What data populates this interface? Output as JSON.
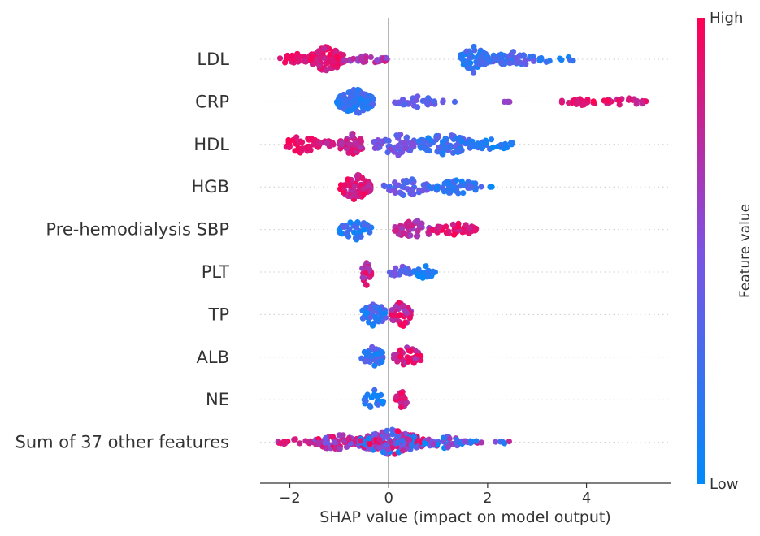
{
  "chart_data": {
    "type": "scatter",
    "subtype": "shap-beeswarm",
    "xlabel": "SHAP value (impact on model output)",
    "xlim": [
      -2.6,
      5.7
    ],
    "xticks": [
      -2,
      0,
      2,
      4
    ],
    "xtick_labels": [
      "−2",
      "0",
      "2",
      "4"
    ],
    "features": [
      {
        "name": "LDL",
        "clusters": [
          {
            "x0": -2.2,
            "x1": -1.6,
            "n": 30,
            "spread": 0.55,
            "c0": 0.8,
            "c1": 1.0
          },
          {
            "x0": -1.6,
            "x1": -0.9,
            "n": 110,
            "spread": 1.0,
            "c0": 0.75,
            "c1": 1.0
          },
          {
            "x0": -0.9,
            "x1": 0.0,
            "n": 25,
            "spread": 0.35,
            "c0": 0.55,
            "c1": 0.85
          },
          {
            "x0": 1.45,
            "x1": 2.0,
            "n": 70,
            "spread": 1.0,
            "c0": 0.0,
            "c1": 0.35
          },
          {
            "x0": 2.0,
            "x1": 3.0,
            "n": 55,
            "spread": 0.6,
            "c0": 0.15,
            "c1": 0.45
          },
          {
            "x0": 3.0,
            "x1": 3.75,
            "n": 12,
            "spread": 0.3,
            "c0": 0.05,
            "c1": 0.3
          }
        ]
      },
      {
        "name": "CRP",
        "clusters": [
          {
            "x0": -1.05,
            "x1": -0.3,
            "n": 140,
            "spread": 1.0,
            "c0": 0.05,
            "c1": 0.35
          },
          {
            "x0": 0.1,
            "x1": 1.1,
            "n": 30,
            "spread": 0.4,
            "c0": 0.25,
            "c1": 0.5
          },
          {
            "x0": 1.3,
            "x1": 1.4,
            "n": 1,
            "spread": 0.0,
            "c0": 0.3,
            "c1": 0.35
          },
          {
            "x0": 2.3,
            "x1": 2.7,
            "n": 4,
            "spread": 0.0,
            "c0": 0.55,
            "c1": 0.7
          },
          {
            "x0": 3.5,
            "x1": 4.3,
            "n": 25,
            "spread": 0.25,
            "c0": 0.8,
            "c1": 1.0
          },
          {
            "x0": 4.3,
            "x1": 5.25,
            "n": 25,
            "spread": 0.3,
            "c0": 0.75,
            "c1": 1.0
          }
        ]
      },
      {
        "name": "HDL",
        "clusters": [
          {
            "x0": -2.1,
            "x1": -1.4,
            "n": 45,
            "spread": 0.7,
            "c0": 0.85,
            "c1": 1.0
          },
          {
            "x0": -1.4,
            "x1": -1.1,
            "n": 8,
            "spread": 0.3,
            "c0": 0.7,
            "c1": 0.9
          },
          {
            "x0": -1.0,
            "x1": -0.5,
            "n": 55,
            "spread": 0.85,
            "c0": 0.65,
            "c1": 0.95
          },
          {
            "x0": -0.3,
            "x1": 0.6,
            "n": 55,
            "spread": 0.85,
            "c0": 0.3,
            "c1": 0.6
          },
          {
            "x0": 0.6,
            "x1": 1.7,
            "n": 85,
            "spread": 0.85,
            "c0": 0.05,
            "c1": 0.4
          },
          {
            "x0": 1.7,
            "x1": 2.5,
            "n": 30,
            "spread": 0.5,
            "c0": 0.0,
            "c1": 0.25
          }
        ]
      },
      {
        "name": "HGB",
        "clusters": [
          {
            "x0": -1.0,
            "x1": -0.35,
            "n": 95,
            "spread": 1.0,
            "c0": 0.7,
            "c1": 1.0
          },
          {
            "x0": -0.1,
            "x1": 0.8,
            "n": 45,
            "spread": 0.7,
            "c0": 0.25,
            "c1": 0.55
          },
          {
            "x0": 0.8,
            "x1": 1.9,
            "n": 50,
            "spread": 0.55,
            "c0": 0.05,
            "c1": 0.35
          },
          {
            "x0": 1.9,
            "x1": 2.1,
            "n": 3,
            "spread": 0.0,
            "c0": 0.0,
            "c1": 0.15
          }
        ]
      },
      {
        "name": "Pre-hemodialysis SBP",
        "clusters": [
          {
            "x0": -1.0,
            "x1": -0.35,
            "n": 45,
            "spread": 0.8,
            "c0": 0.0,
            "c1": 0.35
          },
          {
            "x0": 0.1,
            "x1": 0.9,
            "n": 55,
            "spread": 0.75,
            "c0": 0.55,
            "c1": 0.85
          },
          {
            "x0": 0.9,
            "x1": 1.8,
            "n": 50,
            "spread": 0.5,
            "c0": 0.75,
            "c1": 1.0
          }
        ]
      },
      {
        "name": "PLT",
        "clusters": [
          {
            "x0": -0.55,
            "x1": -0.35,
            "n": 30,
            "spread": 1.0,
            "c0": 0.6,
            "c1": 0.95
          },
          {
            "x0": 0.0,
            "x1": 0.45,
            "n": 18,
            "spread": 0.5,
            "c0": 0.25,
            "c1": 0.55
          },
          {
            "x0": 0.5,
            "x1": 0.95,
            "n": 22,
            "spread": 0.5,
            "c0": 0.0,
            "c1": 0.25
          }
        ]
      },
      {
        "name": "TP",
        "clusters": [
          {
            "x0": -0.55,
            "x1": -0.05,
            "n": 55,
            "spread": 1.0,
            "c0": 0.05,
            "c1": 0.45
          },
          {
            "x0": 0.05,
            "x1": 0.45,
            "n": 45,
            "spread": 1.0,
            "c0": 0.6,
            "c1": 1.0
          }
        ]
      },
      {
        "name": "ALB",
        "clusters": [
          {
            "x0": -0.55,
            "x1": -0.1,
            "n": 40,
            "spread": 0.9,
            "c0": 0.05,
            "c1": 0.45
          },
          {
            "x0": 0.1,
            "x1": 0.65,
            "n": 45,
            "spread": 0.85,
            "c0": 0.6,
            "c1": 1.0
          }
        ]
      },
      {
        "name": "NE",
        "clusters": [
          {
            "x0": -0.5,
            "x1": -0.1,
            "n": 22,
            "spread": 0.8,
            "c0": 0.0,
            "c1": 0.3
          },
          {
            "x0": 0.15,
            "x1": 0.4,
            "n": 25,
            "spread": 0.7,
            "c0": 0.65,
            "c1": 1.0
          }
        ]
      },
      {
        "name": "Sum of 37 other features",
        "clusters": [
          {
            "x0": -2.25,
            "x1": -1.5,
            "n": 18,
            "spread": 0.25,
            "c0": 0.7,
            "c1": 1.0
          },
          {
            "x0": -1.5,
            "x1": -0.6,
            "n": 70,
            "spread": 0.65,
            "c0": 0.4,
            "c1": 1.0
          },
          {
            "x0": -0.6,
            "x1": 0.7,
            "n": 180,
            "spread": 1.0,
            "c0": 0.0,
            "c1": 1.0
          },
          {
            "x0": 0.7,
            "x1": 1.5,
            "n": 45,
            "spread": 0.55,
            "c0": 0.0,
            "c1": 0.7
          },
          {
            "x0": 1.5,
            "x1": 2.45,
            "n": 18,
            "spread": 0.25,
            "c0": 0.0,
            "c1": 0.8
          }
        ]
      }
    ],
    "colorbar": {
      "title": "Feature value",
      "high_label": "High",
      "low_label": "Low",
      "low_color": "#008bfb",
      "high_color": "#ff0052"
    }
  }
}
